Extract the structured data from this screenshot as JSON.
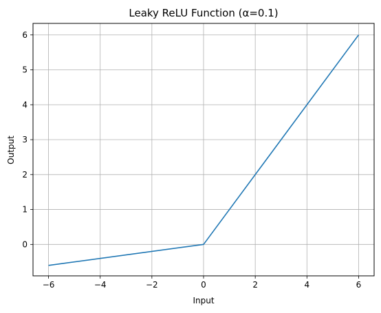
{
  "chart_data": {
    "type": "line",
    "title": "Leaky ReLU Function (α=0.1)",
    "xlabel": "Input",
    "ylabel": "Output",
    "xlim": [
      -6.6,
      6.6
    ],
    "ylim": [
      -0.9,
      6.33
    ],
    "xticks": [
      -6,
      -4,
      -2,
      0,
      2,
      4,
      6
    ],
    "yticks": [
      0,
      1,
      2,
      3,
      4,
      5,
      6
    ],
    "xtick_labels": [
      "−6",
      "−4",
      "−2",
      "0",
      "2",
      "4",
      "6"
    ],
    "ytick_labels": [
      "0",
      "1",
      "2",
      "3",
      "4",
      "5",
      "6"
    ],
    "grid": true,
    "series": [
      {
        "color": "#1f77b4",
        "x": [
          -6,
          0,
          6
        ],
        "y": [
          -0.6,
          0,
          6
        ]
      }
    ]
  }
}
